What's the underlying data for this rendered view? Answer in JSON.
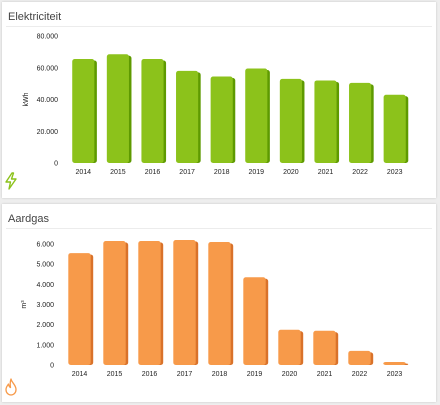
{
  "chart_data": [
    {
      "type": "bar",
      "title": "Elektriciteit",
      "ylabel": "kWh",
      "xlabel": "",
      "categories": [
        "2014",
        "2015",
        "2016",
        "2017",
        "2018",
        "2019",
        "2020",
        "2021",
        "2022",
        "2023"
      ],
      "values": [
        65500,
        68500,
        65500,
        58000,
        54500,
        59500,
        53000,
        52000,
        50500,
        43000
      ],
      "ylim": [
        0,
        80000
      ],
      "yticks": [
        0,
        20000,
        40000,
        60000,
        80000
      ],
      "ytick_labels": [
        "0",
        "20.000",
        "40.000",
        "60.000",
        "80.000"
      ],
      "bar_color": "#8cc21b",
      "bar_edge_color": "#5e9a00",
      "grid": false,
      "icon": "lightning-bolt-icon",
      "icon_color": "#8cc21b"
    },
    {
      "type": "bar",
      "title": "Aardgas",
      "ylabel": "m³",
      "xlabel": "",
      "categories": [
        "2014",
        "2015",
        "2016",
        "2017",
        "2018",
        "2019",
        "2020",
        "2021",
        "2022",
        "2023"
      ],
      "values": [
        5550,
        6150,
        6150,
        6200,
        6100,
        4350,
        1750,
        1700,
        700,
        150
      ],
      "ylim": [
        0,
        6000
      ],
      "yticks": [
        0,
        1000,
        2000,
        3000,
        4000,
        5000,
        6000
      ],
      "ytick_labels": [
        "0",
        "1.000",
        "2.000",
        "3.000",
        "4.000",
        "5.000",
        "6.000"
      ],
      "bar_color": "#f79a4a",
      "bar_edge_color": "#d9722a",
      "grid": false,
      "icon": "flame-icon",
      "icon_color": "#f79a4a"
    }
  ]
}
